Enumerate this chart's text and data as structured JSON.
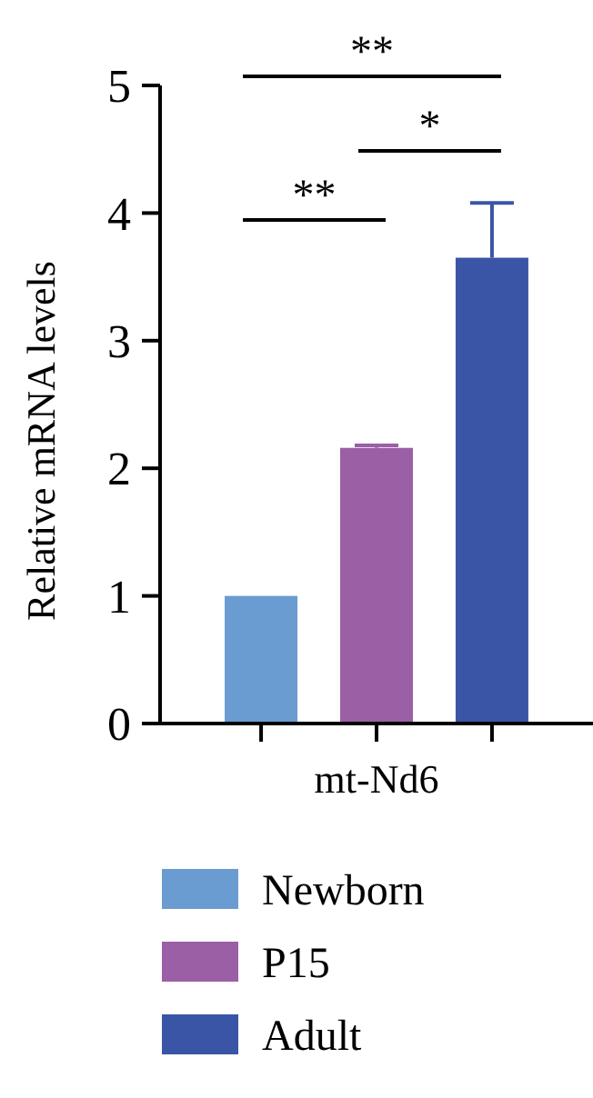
{
  "chart_data": {
    "type": "bar",
    "ylabel": "Relative mRNA levels",
    "categories": [
      "mt-Nd6"
    ],
    "series": [
      {
        "name": "Newborn",
        "color": "#6a9bd1",
        "values": [
          1.0
        ],
        "errors": [
          null
        ]
      },
      {
        "name": "P15",
        "color": "#9b5fa5",
        "values": [
          2.16
        ],
        "errors": [
          0.02
        ]
      },
      {
        "name": "Adult",
        "color": "#3a55a6",
        "values": [
          3.65
        ],
        "errors": [
          0.43
        ]
      }
    ],
    "ylim": [
      0,
      5
    ],
    "yticks": [
      0,
      1,
      2,
      3,
      4,
      5
    ],
    "grid": false,
    "legend": "bottom",
    "annotations": [
      "**",
      "*",
      "**"
    ]
  }
}
